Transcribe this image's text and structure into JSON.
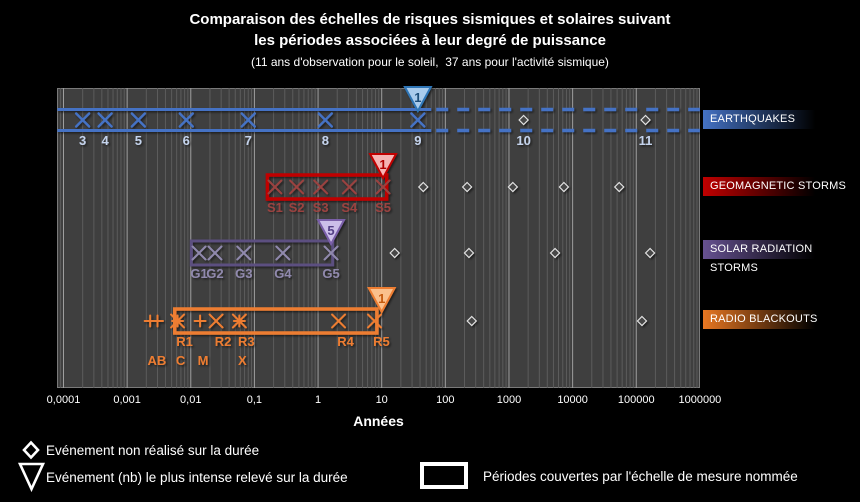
{
  "title": {
    "line1": "Comparaison des échelles de risques sismiques et solaires suivant",
    "line2": "les périodes associées à leur degré de puissance",
    "subtitle": "(11 ans d'observation pour le soleil,  37 ans pour l'activité sismique)"
  },
  "chart_data": {
    "type": "scatter",
    "x_axis": {
      "scale": "log10",
      "unit_label": "Années",
      "range": [
        0.0001,
        1000000
      ],
      "tick_labels": [
        "0,0001",
        "0,001",
        "0,01",
        "0,1",
        "1",
        "10",
        "100",
        "1000",
        "10000",
        "100000",
        "1000000"
      ],
      "tick_values": [
        0.0001,
        0.001,
        0.01,
        0.1,
        1,
        10,
        100,
        1000,
        10000,
        100000,
        1000000
      ],
      "grid": "log-major-minor"
    },
    "rows": [
      {
        "id": "earthquakes",
        "label": "EARTHQUAKES",
        "color": "#4472C4",
        "marker_color": "#4472C4",
        "label_color": "#C4D3EC",
        "band": {
          "type": "double-line",
          "solid_range_years": [
            8e-05,
            60
          ],
          "dashed_range_years": [
            60,
            1000000
          ]
        },
        "events": [
          {
            "label": "3",
            "years": 0.0002
          },
          {
            "label": "4",
            "years": 0.00045
          },
          {
            "label": "5",
            "years": 0.0015
          },
          {
            "label": "6",
            "years": 0.0085
          },
          {
            "label": "7",
            "years": 0.08
          },
          {
            "label": "8",
            "years": 1.3
          },
          {
            "label": "9",
            "years": 37
          }
        ],
        "not_realized": [
          {
            "label": "10",
            "years": 1700
          },
          {
            "label": "11",
            "years": 140000
          }
        ],
        "most_intense": {
          "count": "1",
          "years": 37,
          "fill": "#A9CBEC",
          "border": "#2E75B6",
          "text": "#1F4E79"
        }
      },
      {
        "id": "geomagnetic-storms",
        "label": "GEOMAGNETIC STORMS",
        "color": "#C00000",
        "marker_color": "#9A4340",
        "label_color": "#9A4340",
        "band": {
          "type": "box",
          "range_years": [
            0.16,
            12
          ],
          "border": "#C00000",
          "stroke_width": 3.5
        },
        "events": [
          {
            "label": "S1",
            "years": 0.21
          },
          {
            "label": "S2",
            "years": 0.46
          },
          {
            "label": "S3",
            "years": 1.1
          },
          {
            "label": "S4",
            "years": 3.1
          },
          {
            "label": "S5",
            "years": 10.5
          }
        ],
        "not_realized": [
          {
            "years": 45
          },
          {
            "years": 220
          },
          {
            "years": 1150
          },
          {
            "years": 7300
          },
          {
            "years": 54000
          }
        ],
        "most_intense": {
          "count": "1",
          "years": 10.5,
          "fill": "#F6B4B4",
          "border": "#C00000",
          "text": "#B00000"
        }
      },
      {
        "id": "solar-radiation-storms",
        "label": "SOLAR RADIATION STORMS",
        "color": "#665191",
        "marker_color": "#9089AD",
        "label_color": "#9089AD",
        "band": {
          "type": "box",
          "range_years": [
            0.0102,
            1.7
          ],
          "border": "#5C5080",
          "stroke_width": 3
        },
        "events": [
          {
            "label": "G1",
            "years": 0.0135
          },
          {
            "label": "G2",
            "years": 0.024
          },
          {
            "label": "G3",
            "years": 0.068
          },
          {
            "label": "G4",
            "years": 0.28
          },
          {
            "label": "G5",
            "years": 1.6
          }
        ],
        "not_realized": [
          {
            "years": 16
          },
          {
            "years": 235
          },
          {
            "years": 5300
          },
          {
            "years": 165000
          }
        ],
        "most_intense": {
          "count": "5",
          "years": 1.6,
          "fill": "#CCBFE9",
          "border": "#7A5EA8",
          "text": "#533F85"
        }
      },
      {
        "id": "radio-blackouts",
        "label": "RADIO BLACKOUTS",
        "color": "#E87722",
        "marker_color": "#ED7D31",
        "label_color": "#ED7D31",
        "band": {
          "type": "box",
          "range_years": [
            0.0056,
            8.4
          ],
          "border": "#ED7D31",
          "stroke_width": 3.5
        },
        "events": [
          {
            "label": "R1",
            "years": 0.0062
          },
          {
            "label": "R2",
            "years": 0.025
          },
          {
            "label": "R3",
            "years": 0.058
          },
          {
            "label": "R4",
            "years": 2.1
          },
          {
            "label": "R5",
            "years": 7.7
          }
        ],
        "flare_classes": [
          {
            "label": "AB",
            "years": [
              0.0023,
              0.003
            ]
          },
          {
            "label": "C",
            "years": [
              0.0062
            ]
          },
          {
            "label": "M",
            "years": [
              0.014
            ]
          },
          {
            "label": "X",
            "years": [
              0.058
            ]
          }
        ],
        "not_realized": [
          {
            "years": 260
          },
          {
            "years": 123000
          }
        ],
        "most_intense": {
          "count": "1",
          "years": 10,
          "fill": "#FBC08C",
          "border": "#ED7D31",
          "text": "#C55A11"
        }
      }
    ]
  },
  "legend": {
    "not_realized": "Evénement non réalisé sur la durée",
    "most_intense": "Evénement (nb) le plus intense relevé sur la durée",
    "coverage": "Périodes couvertes par l'échelle de mesure nommée"
  },
  "colors": {
    "background": "#000000",
    "plot_background": "#3F3F3F",
    "plot_border": "#7A7A7A",
    "grid_major": "#9E9E9E",
    "grid_minor": "#5C5C5C",
    "text": "#FFFFFF"
  }
}
